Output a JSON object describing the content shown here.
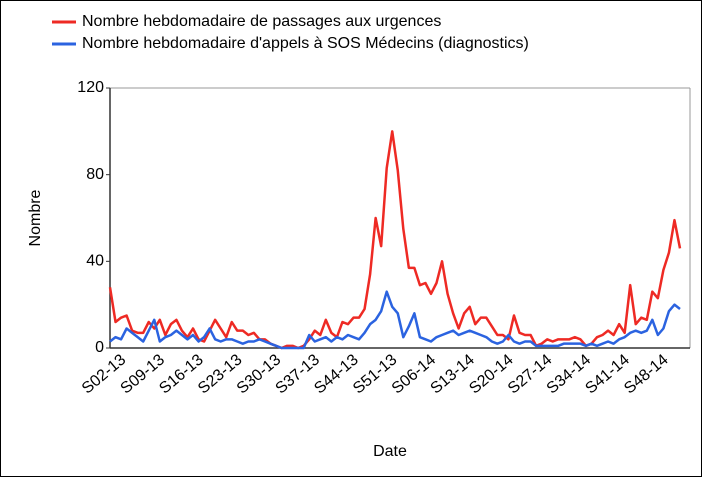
{
  "chart_data": {
    "type": "line",
    "legend": "top-left",
    "xlabel": "Date",
    "ylabel": "Nombre",
    "ylim": [
      0,
      120
    ],
    "yticks": [
      0,
      40,
      80,
      120
    ],
    "grid": false,
    "categories": [
      "S02-13",
      null,
      null,
      null,
      null,
      null,
      null,
      "S09-13",
      null,
      null,
      null,
      null,
      null,
      null,
      "S16-13",
      null,
      null,
      null,
      null,
      null,
      null,
      "S23-13",
      null,
      null,
      null,
      null,
      null,
      null,
      "S30-13",
      null,
      null,
      null,
      null,
      null,
      null,
      "S37-13",
      null,
      null,
      null,
      null,
      null,
      null,
      "S44-13",
      null,
      null,
      null,
      null,
      null,
      null,
      "S51-13",
      null,
      null,
      null,
      null,
      null,
      null,
      "S06-14",
      null,
      null,
      null,
      null,
      null,
      null,
      "S13-14",
      null,
      null,
      null,
      null,
      null,
      null,
      "S20-14",
      null,
      null,
      null,
      null,
      null,
      null,
      "S27-14",
      null,
      null,
      null,
      null,
      null,
      null,
      "S34-14",
      null,
      null,
      null,
      null,
      null,
      null,
      "S41-14",
      null,
      null,
      null,
      null,
      null,
      null,
      "S48-14",
      null,
      null,
      null,
      null,
      null
    ],
    "series": [
      {
        "name": "Nombre hebdomadaire de passages aux urgences",
        "color": "#ee2a24",
        "values": [
          28,
          12,
          14,
          15,
          8,
          7,
          7,
          12,
          9,
          13,
          6,
          11,
          13,
          8,
          5,
          9,
          4,
          3,
          8,
          13,
          9,
          5,
          12,
          8,
          8,
          6,
          7,
          4,
          4,
          2,
          1,
          0,
          1,
          1,
          0,
          1,
          4,
          8,
          6,
          13,
          7,
          5,
          12,
          11,
          14,
          14,
          18,
          34,
          60,
          47,
          83,
          100,
          82,
          55,
          37,
          37,
          29,
          30,
          25,
          30,
          40,
          25,
          16,
          9,
          16,
          19,
          11,
          14,
          14,
          10,
          6,
          6,
          4,
          15,
          7,
          6,
          6,
          1,
          2,
          4,
          3,
          4,
          4,
          4,
          5,
          4,
          1,
          2,
          5,
          6,
          8,
          6,
          11,
          7,
          29,
          11,
          14,
          13,
          26,
          23,
          36,
          44,
          59,
          46
        ]
      },
      {
        "name": "Nombre hebdomadaire d'appels à SOS Médecins (diagnostics)",
        "color": "#2b63e0",
        "values": [
          3,
          5,
          4,
          9,
          7,
          5,
          3,
          8,
          13,
          3,
          5,
          6,
          8,
          6,
          4,
          6,
          3,
          5,
          9,
          4,
          3,
          4,
          4,
          3,
          2,
          3,
          3,
          4,
          3,
          2,
          1,
          0,
          0,
          0,
          0,
          0,
          6,
          3,
          4,
          5,
          3,
          5,
          4,
          6,
          5,
          4,
          7,
          11,
          13,
          17,
          26,
          19,
          16,
          5,
          10,
          16,
          5,
          4,
          3,
          5,
          6,
          7,
          8,
          6,
          7,
          8,
          7,
          6,
          5,
          3,
          2,
          3,
          6,
          3,
          2,
          3,
          3,
          1,
          1,
          1,
          1,
          1,
          2,
          2,
          2,
          2,
          1,
          2,
          1,
          2,
          3,
          2,
          4,
          5,
          7,
          8,
          7,
          8,
          13,
          6,
          9,
          17,
          20,
          18
        ]
      }
    ]
  }
}
